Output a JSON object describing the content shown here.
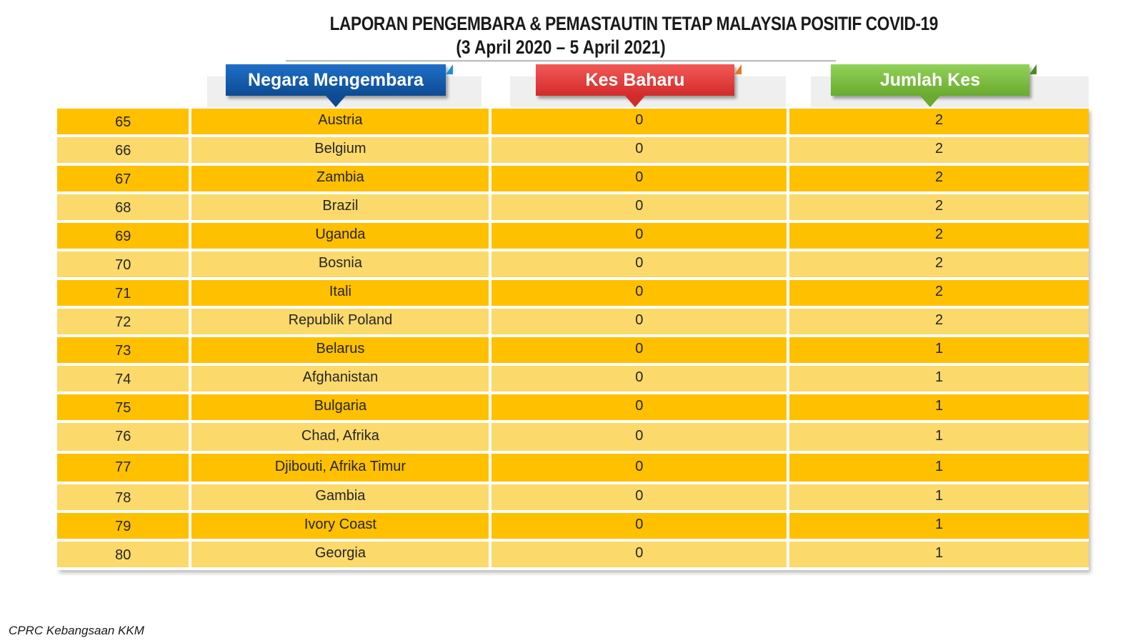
{
  "title": {
    "line1": "LAPORAN PENGEMBARA & PEMASTAUTIN TETAP MALAYSIA POSITIF COVID-19",
    "line2": "(3 April 2020 – 5 April 2021)"
  },
  "headers": {
    "country": "Negara Mengembara",
    "new_cases": "Kes Baharu",
    "total_cases": "Jumlah Kes"
  },
  "colors": {
    "row_dark": "#ffc000",
    "row_light": "#fbd96b",
    "header_blue": "#0d4b92",
    "header_red": "#d22b2b",
    "header_green": "#6aaa2e"
  },
  "rows": [
    {
      "no": "65",
      "country": "Austria",
      "new": "0",
      "total": "2"
    },
    {
      "no": "66",
      "country": "Belgium",
      "new": "0",
      "total": "2"
    },
    {
      "no": "67",
      "country": "Zambia",
      "new": "0",
      "total": "2"
    },
    {
      "no": "68",
      "country": "Brazil",
      "new": "0",
      "total": "2"
    },
    {
      "no": "69",
      "country": "Uganda",
      "new": "0",
      "total": "2"
    },
    {
      "no": "70",
      "country": "Bosnia",
      "new": "0",
      "total": "2"
    },
    {
      "no": "71",
      "country": "Itali",
      "new": "0",
      "total": "2"
    },
    {
      "no": "72",
      "country": "Republik Poland",
      "new": "0",
      "total": "2"
    },
    {
      "no": "73",
      "country": "Belarus",
      "new": "0",
      "total": "1"
    },
    {
      "no": "74",
      "country": "Afghanistan",
      "new": "0",
      "total": "1"
    },
    {
      "no": "75",
      "country": "Bulgaria",
      "new": "0",
      "total": "1"
    },
    {
      "no": "76",
      "country": "Chad, Afrika",
      "new": "0",
      "total": "1"
    },
    {
      "no": "77",
      "country": "Djibouti, Afrika Timur",
      "new": "0",
      "total": "1"
    },
    {
      "no": "78",
      "country": "Gambia",
      "new": "0",
      "total": "1"
    },
    {
      "no": "79",
      "country": "Ivory Coast",
      "new": "0",
      "total": "1"
    },
    {
      "no": "80",
      "country": "Georgia",
      "new": "0",
      "total": "1"
    }
  ],
  "footer": "CPRC Kebangsaan KKM"
}
